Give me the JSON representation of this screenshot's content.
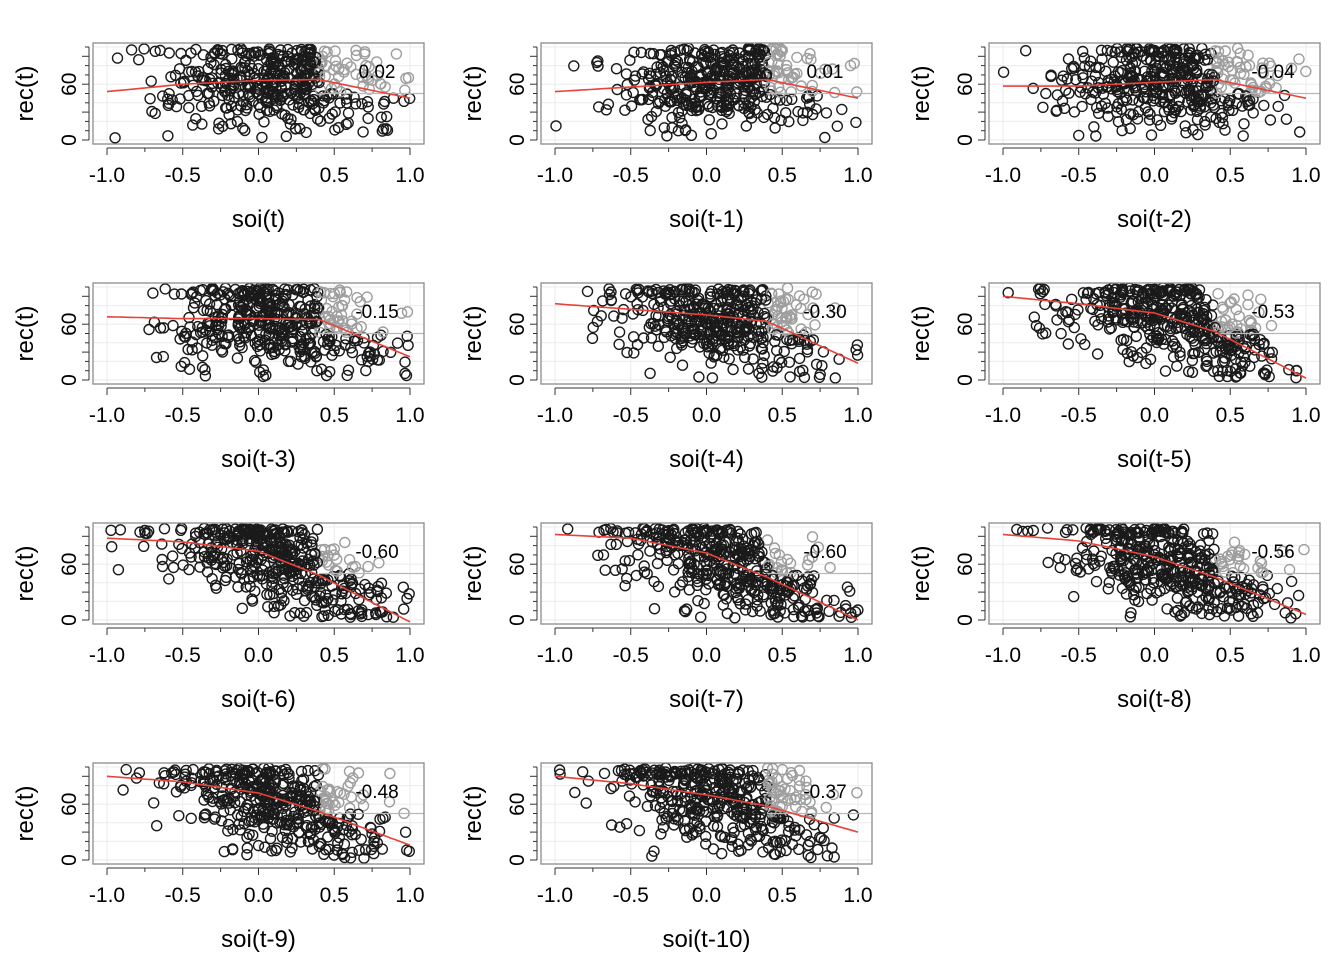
{
  "colors": {
    "points": "#1a1a1a",
    "points_right": "#9e9e9e",
    "smooth": "#e8433a",
    "grid": "#ebebeb",
    "frame": "#8c8c8c",
    "refline": "#b8b8b8"
  },
  "chart_data": [
    {
      "type": "scatter",
      "xlabel": "soi(t)",
      "ylabel": "rec(t)",
      "correlation": "0.02",
      "xlim": [
        -1.0,
        1.0
      ],
      "ylim": [
        0,
        100
      ],
      "x_ticks": [
        "-1.0",
        "-0.5",
        "0.0",
        "0.5",
        "1.0"
      ],
      "y_ticks": [
        "0",
        "60"
      ],
      "smooth": {
        "x": [
          -1.0,
          -0.5,
          0.0,
          0.4,
          1.0
        ],
        "y": [
          52,
          60,
          64,
          65,
          45
        ]
      }
    },
    {
      "type": "scatter",
      "xlabel": "soi(t-1)",
      "ylabel": "rec(t)",
      "correlation": "0.01",
      "xlim": [
        -1.0,
        1.0
      ],
      "ylim": [
        0,
        100
      ],
      "x_ticks": [
        "-1.0",
        "-0.5",
        "0.0",
        "0.5",
        "1.0"
      ],
      "y_ticks": [
        "0",
        "60"
      ],
      "smooth": {
        "x": [
          -1.0,
          -0.5,
          0.0,
          0.4,
          1.0
        ],
        "y": [
          52,
          57,
          62,
          65,
          45
        ]
      }
    },
    {
      "type": "scatter",
      "xlabel": "soi(t-2)",
      "ylabel": "rec(t)",
      "correlation": "-0.04",
      "xlim": [
        -1.0,
        1.0
      ],
      "ylim": [
        0,
        100
      ],
      "x_ticks": [
        "-1.0",
        "-0.5",
        "0.0",
        "0.5",
        "1.0"
      ],
      "y_ticks": [
        "0",
        "60"
      ],
      "smooth": {
        "x": [
          -1.0,
          -0.5,
          0.0,
          0.4,
          1.0
        ],
        "y": [
          58,
          58,
          62,
          65,
          45
        ]
      }
    },
    {
      "type": "scatter",
      "xlabel": "soi(t-3)",
      "ylabel": "rec(t)",
      "correlation": "-0.15",
      "xlim": [
        -1.0,
        1.0
      ],
      "ylim": [
        0,
        100
      ],
      "x_ticks": [
        "-1.0",
        "-0.5",
        "0.0",
        "0.5",
        "1.0"
      ],
      "y_ticks": [
        "0",
        "60"
      ],
      "smooth": {
        "x": [
          -1.0,
          -0.5,
          0.0,
          0.4,
          1.0
        ],
        "y": [
          68,
          66,
          66,
          65,
          25
        ]
      }
    },
    {
      "type": "scatter",
      "xlabel": "soi(t-4)",
      "ylabel": "rec(t)",
      "correlation": "-0.30",
      "xlim": [
        -1.0,
        1.0
      ],
      "ylim": [
        0,
        100
      ],
      "x_ticks": [
        "-1.0",
        "-0.5",
        "0.0",
        "0.5",
        "1.0"
      ],
      "y_ticks": [
        "0",
        "60"
      ],
      "smooth": {
        "x": [
          -1.0,
          -0.5,
          0.0,
          0.4,
          1.0
        ],
        "y": [
          82,
          76,
          70,
          63,
          18
        ]
      }
    },
    {
      "type": "scatter",
      "xlabel": "soi(t-5)",
      "ylabel": "rec(t)",
      "correlation": "-0.53",
      "xlim": [
        -1.0,
        1.0
      ],
      "ylim": [
        0,
        100
      ],
      "x_ticks": [
        "-1.0",
        "-0.5",
        "0.0",
        "0.5",
        "1.0"
      ],
      "y_ticks": [
        "0",
        "60"
      ],
      "smooth": {
        "x": [
          -1.0,
          -0.5,
          0.0,
          0.4,
          1.0
        ],
        "y": [
          90,
          82,
          72,
          52,
          2
        ]
      }
    },
    {
      "type": "scatter",
      "xlabel": "soi(t-6)",
      "ylabel": "rec(t)",
      "correlation": "-0.60",
      "xlim": [
        -1.0,
        1.0
      ],
      "ylim": [
        0,
        100
      ],
      "x_ticks": [
        "-1.0",
        "-0.5",
        "0.0",
        "0.5",
        "1.0"
      ],
      "y_ticks": [
        "0",
        "60"
      ],
      "smooth": {
        "x": [
          -1.0,
          -0.5,
          0.0,
          0.4,
          1.0
        ],
        "y": [
          88,
          84,
          74,
          48,
          -2
        ]
      }
    },
    {
      "type": "scatter",
      "xlabel": "soi(t-7)",
      "ylabel": "rec(t)",
      "correlation": "-0.60",
      "xlim": [
        -1.0,
        1.0
      ],
      "ylim": [
        0,
        100
      ],
      "x_ticks": [
        "-1.0",
        "-0.5",
        "0.0",
        "0.5",
        "1.0"
      ],
      "y_ticks": [
        "0",
        "60"
      ],
      "smooth": {
        "x": [
          -1.0,
          -0.5,
          0.0,
          0.4,
          1.0
        ],
        "y": [
          92,
          88,
          72,
          46,
          0
        ]
      }
    },
    {
      "type": "scatter",
      "xlabel": "soi(t-8)",
      "ylabel": "rec(t)",
      "correlation": "-0.56",
      "xlim": [
        -1.0,
        1.0
      ],
      "ylim": [
        0,
        100
      ],
      "x_ticks": [
        "-1.0",
        "-0.5",
        "0.0",
        "0.5",
        "1.0"
      ],
      "y_ticks": [
        "0",
        "60"
      ],
      "smooth": {
        "x": [
          -1.0,
          -0.5,
          0.0,
          0.4,
          1.0
        ],
        "y": [
          92,
          85,
          68,
          46,
          6
        ]
      }
    },
    {
      "type": "scatter",
      "xlabel": "soi(t-9)",
      "ylabel": "rec(t)",
      "correlation": "-0.48",
      "xlim": [
        -1.0,
        1.0
      ],
      "ylim": [
        0,
        100
      ],
      "x_ticks": [
        "-1.0",
        "-0.5",
        "0.0",
        "0.5",
        "1.0"
      ],
      "y_ticks": [
        "0",
        "60"
      ],
      "smooth": {
        "x": [
          -1.0,
          -0.5,
          0.0,
          0.4,
          1.0
        ],
        "y": [
          90,
          84,
          72,
          52,
          16
        ]
      }
    },
    {
      "type": "scatter",
      "xlabel": "soi(t-10)",
      "ylabel": "rec(t)",
      "correlation": "-0.37",
      "xlim": [
        -1.0,
        1.0
      ],
      "ylim": [
        0,
        100
      ],
      "x_ticks": [
        "-1.0",
        "-0.5",
        "0.0",
        "0.5",
        "1.0"
      ],
      "y_ticks": [
        "0",
        "60"
      ],
      "smooth": {
        "x": [
          -1.0,
          -0.5,
          0.0,
          0.4,
          1.0
        ],
        "y": [
          90,
          82,
          70,
          58,
          30
        ]
      }
    }
  ]
}
